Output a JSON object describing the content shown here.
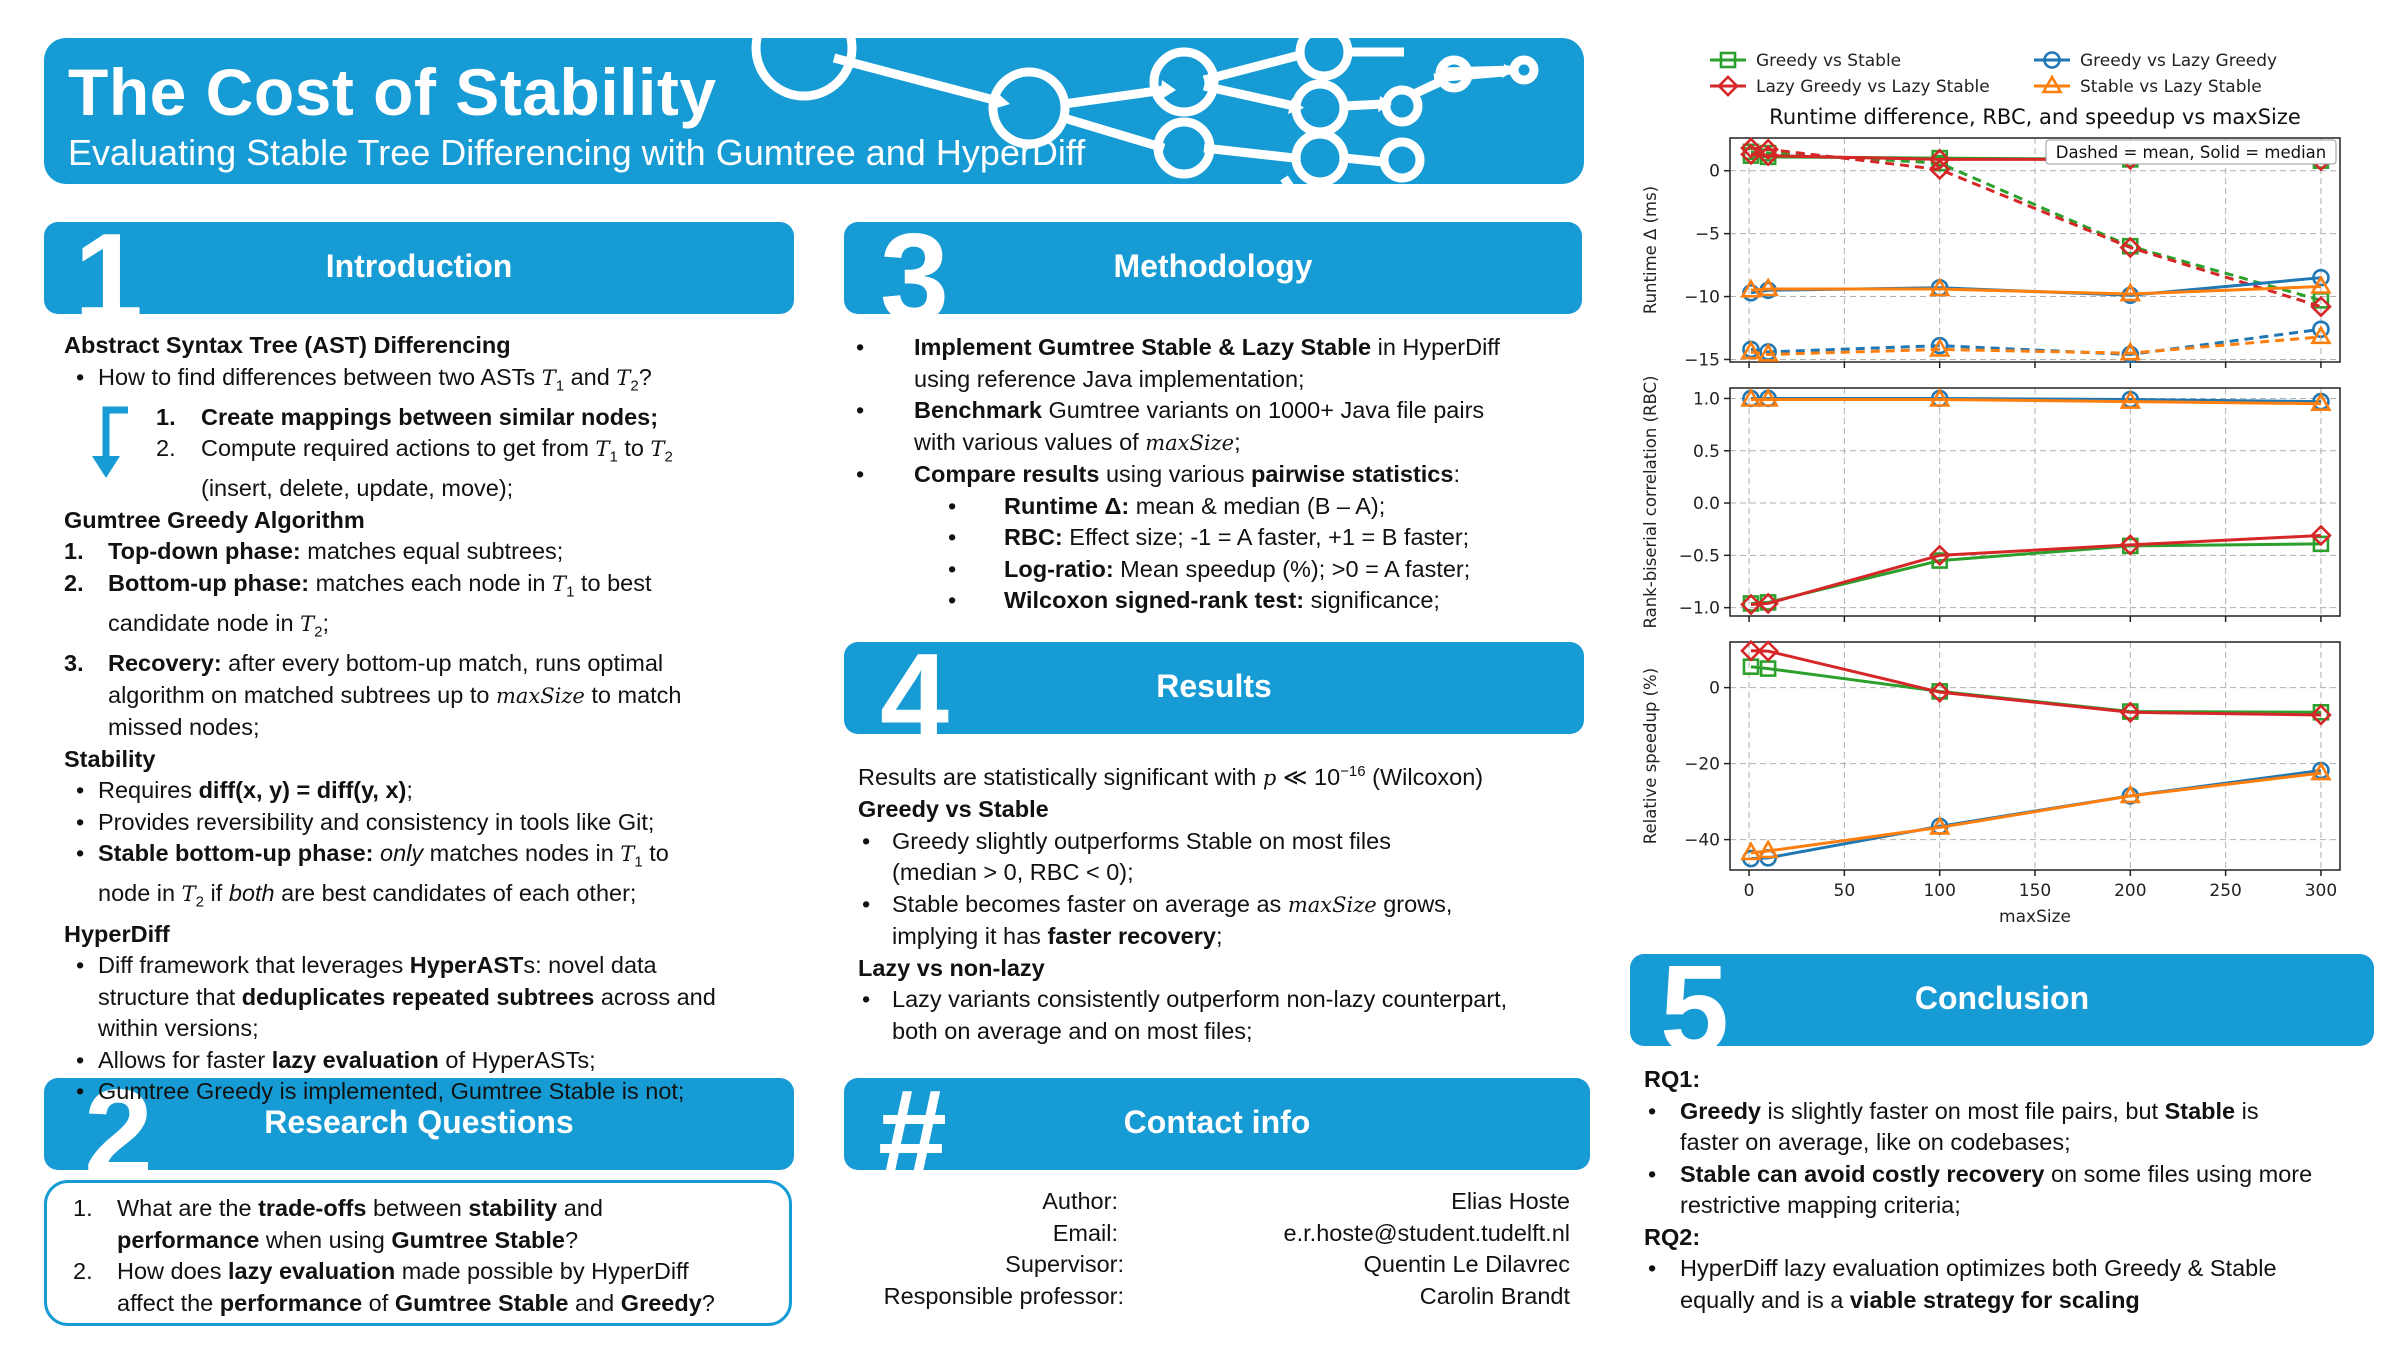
{
  "header": {
    "title": "The Cost of Stability",
    "subtitle": "Evaluating Stable Tree Differencing with Gumtree and HyperDiff"
  },
  "sections": {
    "intro": {
      "num": "1",
      "title": "Introduction"
    },
    "rq": {
      "num": "2",
      "title": "Research Questions"
    },
    "method": {
      "num": "3",
      "title": "Methodology"
    },
    "results": {
      "num": "4",
      "title": "Results"
    },
    "contact": {
      "num": "#",
      "title": "Contact info"
    },
    "conclusion": {
      "num": "5",
      "title": "Conclusion"
    }
  },
  "intro": {
    "ast_heading": "Abstract Syntax Tree (AST) Differencing",
    "ast_q_pre": "How to find differences between two ASTs ",
    "and": " and ",
    "qmark": "?",
    "step1_num": "1.",
    "step1": "Create mappings between similar nodes;",
    "step2_num": "2.",
    "step2_pre": "Compute required actions to get from ",
    "to": " to ",
    "step2_post": "(insert, delete, update, move);",
    "greedy_heading": "Gumtree Greedy Algorithm",
    "g1_num": "1.",
    "g1_bold": "Top-down phase:",
    "g1_text": " matches equal subtrees;",
    "g2_num": "2.",
    "g2_bold": "Bottom-up phase:",
    "g2_text": " matches each node in ",
    "g2_text2": " to best",
    "g2_line2": "candidate node in ",
    "semicolon": ";",
    "g3_num": "3.",
    "g3_bold": "Recovery:",
    "g3_text": " after every bottom-up match, runs optimal",
    "g3_line2_pre": "algorithm on matched subtrees up to ",
    "g3_line2_post": " to match",
    "g3_line3": "missed nodes;",
    "stability_heading": "Stability",
    "s1_pre": "Requires ",
    "s1_bold": "diff(x, y) = diff(y, x)",
    "s1_post": ";",
    "s2": "Provides reversibility and consistency in tools like Git;",
    "s3_bold": "Stable bottom-up phase:",
    "s3_italic": " only",
    "s3_text": " matches nodes in ",
    "s3_text2": " to",
    "s3_line2_pre": "node in ",
    "s3_line2_if": " if ",
    "s3_line2_both": "both",
    "s3_line2_post": " are best candidates of each other;",
    "hyperdiff_heading": "HyperDiff",
    "h1_pre": "Diff framework that leverages ",
    "h1_bold": "HyperAST",
    "h1_post": "s: novel data",
    "h1_line2_pre": "structure that ",
    "h1_line2_bold": "deduplicates repeated subtrees",
    "h1_line2_post": " across and",
    "h1_line3": "within versions;",
    "h2_pre": "Allows for faster ",
    "h2_bold": "lazy evaluation",
    "h2_post": " of HyperASTs;",
    "h3": "Gumtree Greedy is implemented, Gumtree Stable is not;",
    "T": "T",
    "sub1": "1",
    "sub2": "2",
    "maxSize": "maxSize"
  },
  "rq": {
    "q1_num": "1.",
    "q1_a": "What are the ",
    "q1_b": "trade-offs",
    "q1_c": " between ",
    "q1_d": "stability",
    "q1_e": " and",
    "q1_f": "performance",
    "q1_g": " when using ",
    "q1_h": "Gumtree Stable",
    "q1_i": "?",
    "q2_num": "2.",
    "q2_a": "How does ",
    "q2_b": "lazy evaluation",
    "q2_c": " made possible by HyperDiff",
    "q2_d": "affect the ",
    "q2_e": "performance",
    "q2_f": " of ",
    "q2_g": "Gumtree Stable",
    "q2_h": " and ",
    "q2_i": "Greedy",
    "q2_j": "?"
  },
  "method": {
    "m1_bold": "Implement Gumtree Stable & Lazy Stable",
    "m1_post": " in HyperDiff",
    "m1_line2": "using reference Java implementation;",
    "m2_bold": "Benchmark",
    "m2_post": " Gumtree variants on 1000+ Java file pairs",
    "m2_line2_pre": "with various values of ",
    "m2_line2_post": ";",
    "m3_bold": "Compare results",
    "m3_mid": " using various ",
    "m3_bold2": "pairwise statistics",
    "m3_post": ":",
    "s1_bold": "Runtime Δ:",
    "s1_text": " mean & median (B – A);",
    "s2_bold": "RBC:",
    "s2_text": " Effect size; -1 = A faster, +1 = B faster;",
    "s3_bold": "Log-ratio:",
    "s3_text": " Mean speedup (%); >0 = A faster;",
    "s4_bold": "Wilcoxon signed-rank test:",
    "s4_text": " significance;",
    "maxSize": "maxSize"
  },
  "results": {
    "line1_pre": "Results are statistically significant with ",
    "p": "p",
    "ll": " ≪ ",
    "ten": "10",
    "exp": "−16",
    "line1_post": " (Wilcoxon)",
    "gvs_heading": "Greedy vs Stable",
    "r1": "Greedy slightly outperforms Stable on most files",
    "r1_line2": "(median > 0, RBC < 0);",
    "r2_pre": "Stable becomes faster on average as ",
    "r2_post": " grows,",
    "r2_line2_pre": "implying it has ",
    "r2_line2_bold": "faster recovery",
    "r2_line2_post": ";",
    "lazy_heading": "Lazy vs non-lazy",
    "r3": "Lazy variants consistently outperform non-lazy counterpart,",
    "r3_line2": "both on average and on most files;",
    "maxSize": "maxSize"
  },
  "contact": {
    "rows": [
      {
        "label": "Author:",
        "value": "Elias Hoste"
      },
      {
        "label": "Email:",
        "value": "e.r.hoste@student.tudelft.nl"
      },
      {
        "label": "Supervisor:",
        "value": "Quentin Le Dilavrec"
      },
      {
        "label": "Responsible professor:",
        "value": "Carolin Brandt"
      }
    ]
  },
  "conclusion": {
    "rq1": "RQ1:",
    "c1_bold": "Greedy",
    "c1_mid": " is slightly faster on most file pairs, but ",
    "c1_bold2": "Stable",
    "c1_post": " is",
    "c1_line2": "faster on average, like on codebases;",
    "c2_bold": "Stable can avoid costly recovery",
    "c2_post": " on some files using more",
    "c2_line2": "restrictive mapping criteria;",
    "rq2": "RQ2:",
    "c3": "HyperDiff lazy evaluation optimizes both Greedy & Stable",
    "c3_line2_pre": "equally and is a ",
    "c3_line2_bold": "viable strategy for scaling"
  },
  "bullet": "•",
  "chart_data": {
    "type": "line",
    "title": "Runtime difference, RBC, and speedup vs maxSize",
    "xlabel": "maxSize",
    "x": [
      1,
      10,
      100,
      200,
      300
    ],
    "xticks": [
      "0",
      "50",
      "100",
      "150",
      "200",
      "250",
      "300"
    ],
    "xlim": [
      -10,
      310
    ],
    "legend_placement": "top",
    "note": "Dashed = mean, Solid = median",
    "grid": true,
    "series": [
      {
        "name": "Greedy vs Stable",
        "color": "#2ca02c",
        "marker": "square"
      },
      {
        "name": "Greedy vs Lazy Greedy",
        "color": "#1f77b4",
        "marker": "circle"
      },
      {
        "name": "Lazy Greedy vs Lazy Stable",
        "color": "#d62728",
        "marker": "diamond"
      },
      {
        "name": "Stable vs Lazy Stable",
        "color": "#ff7f0e",
        "marker": "triangle"
      }
    ],
    "panels": [
      {
        "ylabel": "Runtime Δ (ms)",
        "ylim": [
          -15.2,
          2.6
        ],
        "yticks": [
          0,
          -5,
          -10,
          -15
        ],
        "ytick_labels": [
          "0",
          "−5",
          "−10",
          "−15"
        ],
        "lines": [
          {
            "series": 0,
            "style": "mean",
            "values": [
              1.5,
              1.4,
              0.6,
              -6.0,
              -10.3
            ]
          },
          {
            "series": 0,
            "style": "median",
            "values": [
              1.2,
              1.1,
              1.0,
              0.9,
              0.8
            ]
          },
          {
            "series": 2,
            "style": "mean",
            "values": [
              1.8,
              1.7,
              0.1,
              -6.1,
              -10.8
            ]
          },
          {
            "series": 2,
            "style": "median",
            "values": [
              1.3,
              1.2,
              0.9,
              0.9,
              0.8
            ]
          },
          {
            "series": 1,
            "style": "mean",
            "values": [
              -14.2,
              -14.4,
              -13.9,
              -14.6,
              -12.6
            ]
          },
          {
            "series": 1,
            "style": "median",
            "values": [
              -9.7,
              -9.5,
              -9.3,
              -9.9,
              -8.5
            ]
          },
          {
            "series": 3,
            "style": "mean",
            "values": [
              -14.4,
              -14.6,
              -14.2,
              -14.5,
              -13.2
            ]
          },
          {
            "series": 3,
            "style": "median",
            "values": [
              -9.5,
              -9.4,
              -9.4,
              -9.8,
              -9.2
            ]
          }
        ]
      },
      {
        "ylabel": "Rank-biserial correlation (RBC)",
        "ylim": [
          -1.08,
          1.1
        ],
        "yticks": [
          1.0,
          0.5,
          0.0,
          -0.5,
          -1.0
        ],
        "ytick_labels": [
          "1.0",
          "0.5",
          "0.0",
          "−0.5",
          "−1.0"
        ],
        "lines": [
          {
            "series": 1,
            "style": "median",
            "values": [
              1.0,
              1.0,
              1.0,
              0.99,
              0.97
            ]
          },
          {
            "series": 3,
            "style": "median",
            "values": [
              0.99,
              0.99,
              0.99,
              0.97,
              0.95
            ]
          },
          {
            "series": 0,
            "style": "median",
            "values": [
              -0.96,
              -0.95,
              -0.55,
              -0.41,
              -0.39
            ]
          },
          {
            "series": 2,
            "style": "median",
            "values": [
              -0.97,
              -0.96,
              -0.5,
              -0.4,
              -0.31
            ]
          }
        ]
      },
      {
        "ylabel": "Relative speedup (%)",
        "ylim": [
          -48,
          12
        ],
        "yticks": [
          0,
          -20,
          -40
        ],
        "ytick_labels": [
          "0",
          "−20",
          "−40"
        ],
        "lines": [
          {
            "series": 0,
            "style": "median",
            "values": [
              5.5,
              5.0,
              -1.0,
              -6.3,
              -6.5
            ]
          },
          {
            "series": 2,
            "style": "median",
            "values": [
              9.7,
              9.6,
              -1.2,
              -6.5,
              -7.2
            ]
          },
          {
            "series": 1,
            "style": "median",
            "values": [
              -45.0,
              -44.8,
              -36.5,
              -28.5,
              -21.8
            ]
          },
          {
            "series": 3,
            "style": "median",
            "values": [
              -43.5,
              -43.0,
              -36.8,
              -28.5,
              -22.5
            ]
          }
        ]
      }
    ]
  }
}
